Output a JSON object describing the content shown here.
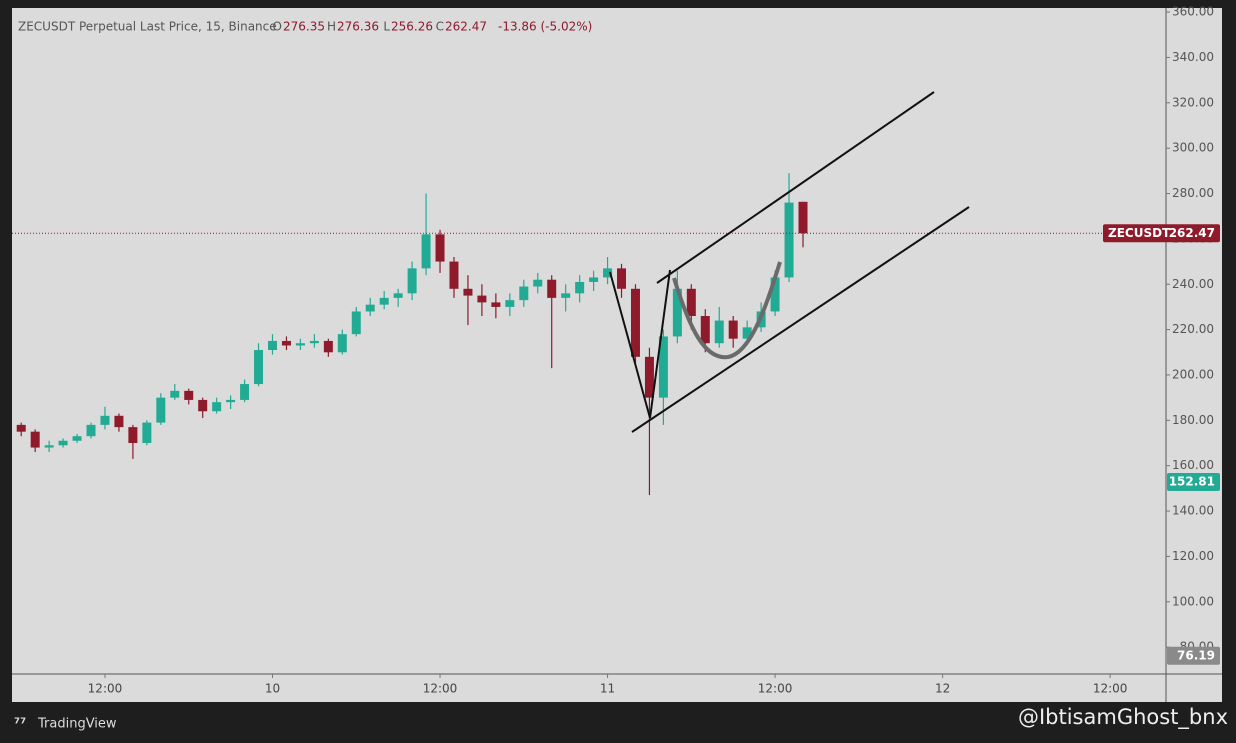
{
  "chart_data": {
    "type": "candlestick",
    "title": "ZECUSDT Perpetual Last Price, 15, Binance",
    "o_label": "O",
    "h_label": "H",
    "l_label": "L",
    "c_label": "C",
    "change_label": "-13.86 (-5.02%)",
    "x": [
      6,
      7,
      8,
      9,
      10,
      11,
      12,
      13,
      14,
      15,
      16,
      17,
      18,
      19,
      20,
      21,
      22,
      23,
      24,
      25,
      26,
      27,
      28,
      29,
      30,
      31,
      32,
      33,
      34,
      35,
      36,
      37,
      38,
      39,
      40,
      41,
      42,
      43,
      44,
      45,
      46,
      47,
      48,
      49,
      50,
      51,
      52,
      53,
      54,
      55,
      56,
      57,
      58,
      59,
      60,
      61,
      62
    ],
    "open": [
      178,
      175,
      168,
      169,
      171,
      173,
      178,
      182,
      177,
      170,
      179,
      190,
      193,
      189,
      184,
      188,
      189,
      196,
      211,
      215,
      213,
      214,
      215,
      210,
      218,
      228,
      231,
      234,
      236,
      247,
      262,
      250,
      238,
      235,
      232,
      230,
      233,
      239,
      242,
      234,
      236,
      241,
      243,
      247,
      238,
      208,
      190,
      217,
      238,
      226,
      214,
      224,
      216,
      221,
      228,
      243,
      276.35
    ],
    "high": [
      179,
      176,
      171,
      172,
      174,
      179,
      186,
      183,
      178,
      180,
      192,
      196,
      194,
      190,
      190,
      191,
      198,
      214,
      218,
      217,
      216,
      218,
      216,
      220,
      230,
      234,
      237,
      238,
      250,
      280,
      264,
      252,
      244,
      240,
      236,
      236,
      242,
      245,
      244,
      240,
      244,
      246,
      252,
      249,
      240,
      212,
      220,
      246,
      240,
      229,
      230,
      226,
      224,
      232,
      246,
      289,
      276.36
    ],
    "low": [
      173,
      166,
      166,
      168,
      170,
      172,
      176,
      175,
      163,
      169,
      178,
      189,
      187,
      181,
      183,
      185,
      188,
      195,
      209,
      211,
      211,
      212,
      208,
      209,
      217,
      226,
      229,
      230,
      233,
      244,
      245,
      234,
      222,
      226,
      225,
      226,
      230,
      236,
      203,
      228,
      232,
      237,
      240,
      234,
      205,
      147,
      178,
      214,
      220,
      210,
      212,
      212,
      214,
      219,
      226,
      241,
      256.26
    ],
    "close": [
      175,
      168,
      169,
      171,
      173,
      178,
      182,
      177,
      170,
      179,
      190,
      193,
      189,
      184,
      188,
      189,
      196,
      211,
      215,
      213,
      214,
      215,
      210,
      218,
      228,
      231,
      234,
      236,
      247,
      262,
      250,
      238,
      235,
      232,
      230,
      233,
      239,
      242,
      234,
      236,
      241,
      243,
      247,
      238,
      208,
      190,
      217,
      238,
      226,
      214,
      224,
      216,
      221,
      228,
      243,
      276,
      262.47
    ],
    "up_color": "#22ab94",
    "down_color": "#8e1a2c",
    "xlim": [
      5.34,
      87.93
    ],
    "ylim": [
      68.6,
      361.8
    ],
    "xticks": [
      {
        "value": 12,
        "label": "12:00"
      },
      {
        "value": 24,
        "label": "10"
      },
      {
        "value": 36,
        "label": "12:00"
      },
      {
        "value": 48,
        "label": "11"
      },
      {
        "value": 60,
        "label": "12:00"
      },
      {
        "value": 72,
        "label": "12"
      },
      {
        "value": 84,
        "label": "12:00"
      }
    ],
    "yticks": [
      {
        "value": 80,
        "label": "80.00"
      },
      {
        "value": 100,
        "label": "100.00"
      },
      {
        "value": 120,
        "label": "120.00"
      },
      {
        "value": 140,
        "label": "140.00"
      },
      {
        "value": 160,
        "label": "160.00"
      },
      {
        "value": 180,
        "label": "180.00"
      },
      {
        "value": 200,
        "label": "200.00"
      },
      {
        "value": 220,
        "label": "220.00"
      },
      {
        "value": 240,
        "label": "240.00"
      },
      {
        "value": 260,
        "label": "260.00"
      },
      {
        "value": 280,
        "label": "280.00"
      },
      {
        "value": 300,
        "label": "300.00"
      },
      {
        "value": 320,
        "label": "320.00"
      },
      {
        "value": 340,
        "label": "340.00"
      },
      {
        "value": 360,
        "label": "360.00"
      }
    ],
    "grid": false,
    "price_tags": [
      {
        "label": "ZECUSDT",
        "value": 262.47,
        "color": "#8e1a2c"
      },
      {
        "value": 152.81,
        "color": "#22ab94"
      },
      {
        "value": 76.19,
        "color": "#8a8a8a"
      }
    ],
    "footer_brand": "TradingView",
    "watermark": "@IbtisamGhost_bnx"
  }
}
